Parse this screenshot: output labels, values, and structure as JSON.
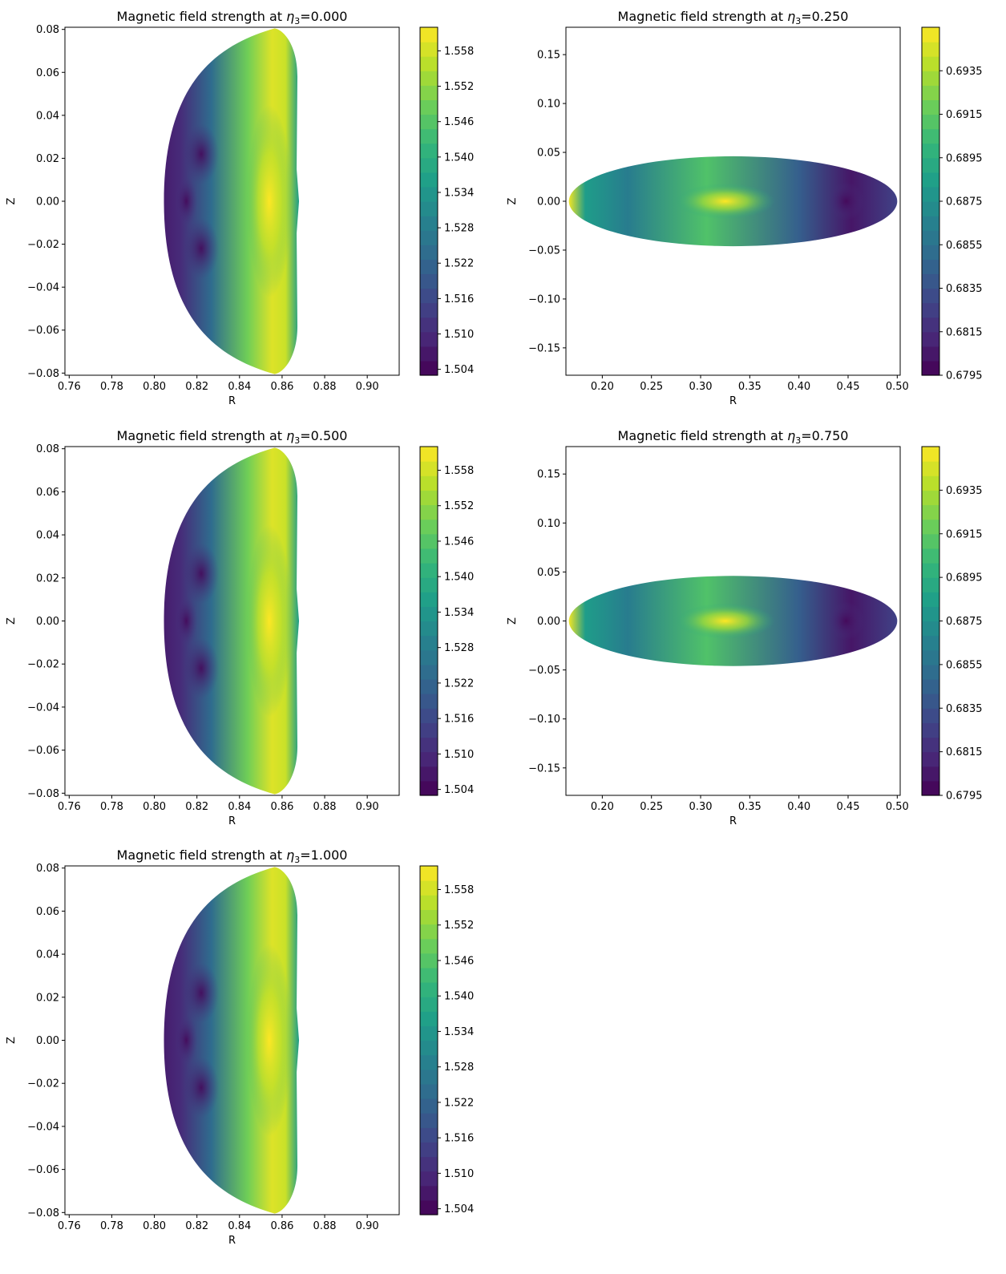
{
  "colormap": {
    "name": "viridis",
    "stops": [
      "#440154",
      "#482878",
      "#3e4989",
      "#31688e",
      "#26828e",
      "#1f9e89",
      "#35b779",
      "#6ece58",
      "#b5de2b",
      "#fde725"
    ]
  },
  "chart_data": [
    {
      "type": "heatmap",
      "title_prefix": "Magnetic field strength at ",
      "title_symbol": "η",
      "title_subscript": "3",
      "title_value": "=0.000",
      "xlabel": "R",
      "ylabel": "Z",
      "xlim": [
        0.758,
        0.915
      ],
      "ylim": [
        -0.081,
        0.081
      ],
      "xticks": [
        "0.76",
        "0.78",
        "0.80",
        "0.82",
        "0.84",
        "0.86",
        "0.88",
        "0.90"
      ],
      "yticks": [
        "−0.08",
        "−0.06",
        "−0.04",
        "−0.02",
        "0.00",
        "0.02",
        "0.04",
        "0.06",
        "0.08"
      ],
      "shape": "d-cross-section",
      "colorbar": {
        "min": 1.503,
        "max": 1.562,
        "ticks": [
          "1.504",
          "1.510",
          "1.516",
          "1.522",
          "1.528",
          "1.534",
          "1.540",
          "1.546",
          "1.552",
          "1.558"
        ]
      }
    },
    {
      "type": "heatmap",
      "title_prefix": "Magnetic field strength at ",
      "title_symbol": "η",
      "title_subscript": "3",
      "title_value": "=0.250",
      "xlabel": "R",
      "ylabel": "Z",
      "xlim": [
        0.163,
        0.503
      ],
      "ylim": [
        -0.178,
        0.178
      ],
      "xticks": [
        "0.20",
        "0.25",
        "0.30",
        "0.35",
        "0.40",
        "0.45",
        "0.50"
      ],
      "yticks": [
        "−0.15",
        "−0.10",
        "−0.05",
        "0.00",
        "0.05",
        "0.10",
        "0.15"
      ],
      "shape": "ellipse-cross-section",
      "colorbar": {
        "min": 0.6795,
        "max": 0.6955,
        "ticks": [
          "0.6795",
          "0.6815",
          "0.6835",
          "0.6855",
          "0.6875",
          "0.6895",
          "0.6915",
          "0.6935"
        ]
      }
    },
    {
      "type": "heatmap",
      "title_prefix": "Magnetic field strength at ",
      "title_symbol": "η",
      "title_subscript": "3",
      "title_value": "=0.500",
      "xlabel": "R",
      "ylabel": "Z",
      "xlim": [
        0.758,
        0.915
      ],
      "ylim": [
        -0.081,
        0.081
      ],
      "xticks": [
        "0.76",
        "0.78",
        "0.80",
        "0.82",
        "0.84",
        "0.86",
        "0.88",
        "0.90"
      ],
      "yticks": [
        "−0.08",
        "−0.06",
        "−0.04",
        "−0.02",
        "0.00",
        "0.02",
        "0.04",
        "0.06",
        "0.08"
      ],
      "shape": "d-cross-section",
      "colorbar": {
        "min": 1.503,
        "max": 1.562,
        "ticks": [
          "1.504",
          "1.510",
          "1.516",
          "1.522",
          "1.528",
          "1.534",
          "1.540",
          "1.546",
          "1.552",
          "1.558"
        ]
      }
    },
    {
      "type": "heatmap",
      "title_prefix": "Magnetic field strength at ",
      "title_symbol": "η",
      "title_subscript": "3",
      "title_value": "=0.750",
      "xlabel": "R",
      "ylabel": "Z",
      "xlim": [
        0.163,
        0.503
      ],
      "ylim": [
        -0.178,
        0.178
      ],
      "xticks": [
        "0.20",
        "0.25",
        "0.30",
        "0.35",
        "0.40",
        "0.45",
        "0.50"
      ],
      "yticks": [
        "−0.15",
        "−0.10",
        "−0.05",
        "0.00",
        "0.05",
        "0.10",
        "0.15"
      ],
      "shape": "ellipse-cross-section",
      "colorbar": {
        "min": 0.6795,
        "max": 0.6955,
        "ticks": [
          "0.6795",
          "0.6815",
          "0.6835",
          "0.6855",
          "0.6875",
          "0.6895",
          "0.6915",
          "0.6935"
        ]
      }
    },
    {
      "type": "heatmap",
      "title_prefix": "Magnetic field strength at ",
      "title_symbol": "η",
      "title_subscript": "3",
      "title_value": "=1.000",
      "xlabel": "R",
      "ylabel": "Z",
      "xlim": [
        0.758,
        0.915
      ],
      "ylim": [
        -0.081,
        0.081
      ],
      "xticks": [
        "0.76",
        "0.78",
        "0.80",
        "0.82",
        "0.84",
        "0.86",
        "0.88",
        "0.90"
      ],
      "yticks": [
        "−0.08",
        "−0.06",
        "−0.04",
        "−0.02",
        "0.00",
        "0.02",
        "0.04",
        "0.06",
        "0.08"
      ],
      "shape": "d-cross-section",
      "colorbar": {
        "min": 1.503,
        "max": 1.562,
        "ticks": [
          "1.504",
          "1.510",
          "1.516",
          "1.522",
          "1.528",
          "1.534",
          "1.540",
          "1.546",
          "1.552",
          "1.558"
        ]
      }
    }
  ]
}
